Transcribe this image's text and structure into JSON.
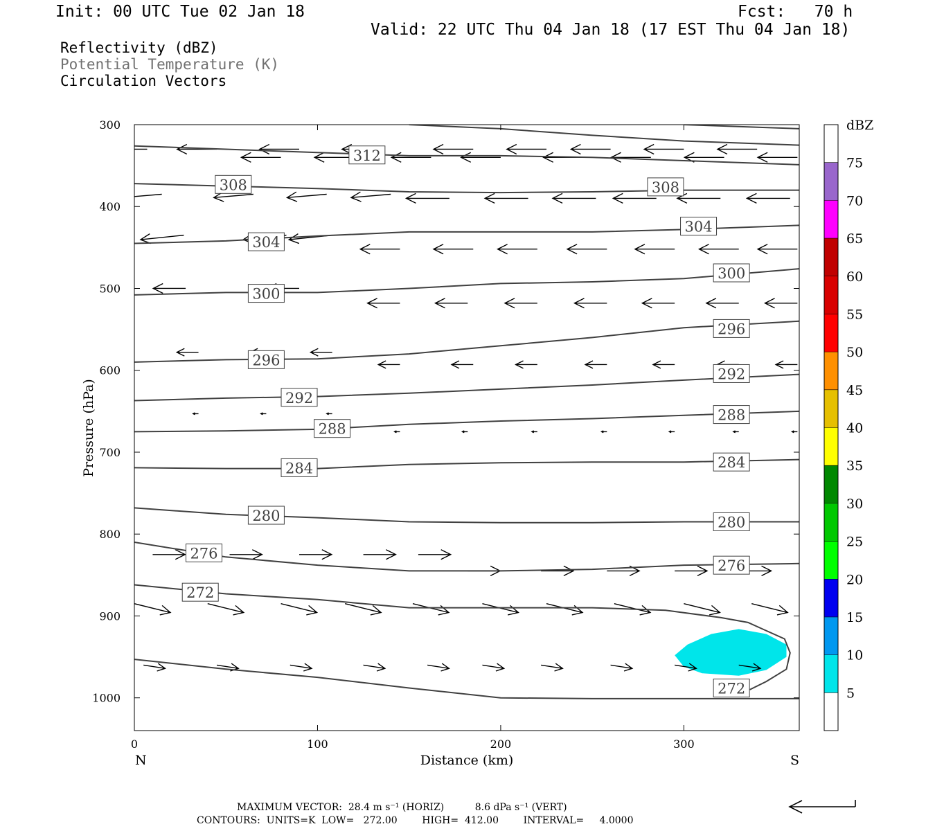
{
  "header": {
    "init": "Init: 00 UTC Tue 02 Jan 18",
    "fcst": "Fcst:   70 h",
    "valid": "Valid: 22 UTC Thu 04 Jan 18 (17 EST Thu 04 Jan 18)"
  },
  "legend": {
    "line1": "Reflectivity (dBZ)",
    "line2": "Potential Temperature (K)",
    "line3": "Circulation Vectors"
  },
  "footer": {
    "line1": "MAXIMUM VECTOR:  28.4 m s⁻¹ (HORIZ)          8.6 dPa s⁻¹ (VERT)",
    "line2": "CONTOURS:  UNITS=K  LOW=   272.00        HIGH=  412.00        INTERVAL=     4.0000"
  },
  "colors": {
    "contour": "#404040",
    "reflectivity_5": "#00e5ea"
  },
  "chart_data": {
    "type": "line",
    "xlabel": "Distance (km)",
    "ylabel": "Pressure (hPa)",
    "xlim": [
      0,
      363
    ],
    "ylim": [
      1040,
      300
    ],
    "x_ticks": [
      0,
      100,
      200,
      300
    ],
    "y_ticks": [
      300,
      400,
      500,
      600,
      700,
      800,
      900,
      1000
    ],
    "x_end_labels": {
      "left": "N",
      "right": "S"
    },
    "colorbar": {
      "title": "dBZ",
      "levels": [
        0,
        5,
        10,
        15,
        20,
        25,
        30,
        35,
        40,
        45,
        50,
        55,
        60,
        65,
        70,
        75,
        80
      ],
      "tick_labels": [
        "5",
        "10",
        "15",
        "20",
        "25",
        "30",
        "35",
        "40",
        "45",
        "50",
        "55",
        "60",
        "65",
        "70",
        "75"
      ],
      "colors": [
        "#ffffff",
        "#00e5ea",
        "#0098f0",
        "#0000f0",
        "#00ff00",
        "#00c800",
        "#008800",
        "#ffff00",
        "#e6c000",
        "#ff9000",
        "#ff0000",
        "#d80000",
        "#c00000",
        "#ff00ff",
        "#9966cc",
        "#ffffff"
      ]
    },
    "isentropes": [
      {
        "theta": 272,
        "points": [
          [
            0,
            953
          ],
          [
            50,
            965
          ],
          [
            100,
            975
          ],
          [
            150,
            988
          ],
          [
            200,
            1000
          ],
          [
            250,
            1001
          ],
          [
            300,
            1001
          ],
          [
            363,
            1001
          ]
        ]
      },
      {
        "theta": 272,
        "points": [
          [
            0,
            862
          ],
          [
            50,
            873
          ],
          [
            100,
            880
          ],
          [
            150,
            890
          ],
          [
            200,
            890
          ],
          [
            250,
            890
          ],
          [
            290,
            893
          ],
          [
            320,
            902
          ],
          [
            335,
            908
          ],
          [
            343,
            916
          ],
          [
            355,
            928
          ],
          [
            358,
            945
          ],
          [
            356,
            965
          ],
          [
            345,
            980
          ],
          [
            336,
            990
          ]
        ]
      },
      {
        "theta": 276,
        "points": [
          [
            0,
            810
          ],
          [
            50,
            828
          ],
          [
            100,
            838
          ],
          [
            150,
            845
          ],
          [
            200,
            845
          ],
          [
            250,
            843
          ],
          [
            300,
            838
          ],
          [
            363,
            836
          ]
        ]
      },
      {
        "theta": 280,
        "points": [
          [
            0,
            768
          ],
          [
            50,
            776
          ],
          [
            100,
            780
          ],
          [
            150,
            785
          ],
          [
            200,
            786
          ],
          [
            250,
            786
          ],
          [
            300,
            785
          ],
          [
            363,
            785
          ]
        ]
      },
      {
        "theta": 284,
        "points": [
          [
            0,
            719
          ],
          [
            50,
            720
          ],
          [
            100,
            720
          ],
          [
            150,
            715
          ],
          [
            200,
            713
          ],
          [
            250,
            712
          ],
          [
            300,
            712
          ],
          [
            363,
            709
          ]
        ]
      },
      {
        "theta": 288,
        "points": [
          [
            0,
            675
          ],
          [
            50,
            674
          ],
          [
            100,
            672
          ],
          [
            150,
            666
          ],
          [
            200,
            662
          ],
          [
            250,
            659
          ],
          [
            300,
            655
          ],
          [
            363,
            650
          ]
        ]
      },
      {
        "theta": 292,
        "points": [
          [
            0,
            637
          ],
          [
            50,
            634
          ],
          [
            100,
            632
          ],
          [
            150,
            628
          ],
          [
            200,
            623
          ],
          [
            250,
            618
          ],
          [
            300,
            612
          ],
          [
            363,
            605
          ]
        ]
      },
      {
        "theta": 296,
        "points": [
          [
            0,
            590
          ],
          [
            50,
            587
          ],
          [
            100,
            586
          ],
          [
            150,
            580
          ],
          [
            200,
            570
          ],
          [
            250,
            560
          ],
          [
            300,
            548
          ],
          [
            363,
            540
          ]
        ]
      },
      {
        "theta": 300,
        "points": [
          [
            0,
            508
          ],
          [
            50,
            505
          ],
          [
            100,
            505
          ],
          [
            150,
            500
          ],
          [
            200,
            494
          ],
          [
            250,
            492
          ],
          [
            300,
            488
          ],
          [
            363,
            476
          ]
        ]
      },
      {
        "theta": 304,
        "points": [
          [
            0,
            445
          ],
          [
            50,
            442
          ],
          [
            100,
            436
          ],
          [
            150,
            431
          ],
          [
            200,
            431
          ],
          [
            250,
            431
          ],
          [
            300,
            428
          ],
          [
            363,
            423
          ]
        ]
      },
      {
        "theta": 308,
        "points": [
          [
            0,
            372
          ],
          [
            50,
            375
          ],
          [
            100,
            378
          ],
          [
            150,
            382
          ],
          [
            200,
            383
          ],
          [
            250,
            382
          ],
          [
            300,
            380
          ],
          [
            363,
            380
          ]
        ]
      },
      {
        "theta": 312,
        "points": [
          [
            0,
            326
          ],
          [
            50,
            330
          ],
          [
            100,
            334
          ],
          [
            150,
            338
          ],
          [
            200,
            338
          ],
          [
            250,
            340
          ],
          [
            300,
            344
          ],
          [
            363,
            349
          ]
        ]
      },
      {
        "theta": 316,
        "points": [
          [
            150,
            300
          ],
          [
            200,
            305
          ],
          [
            250,
            313
          ],
          [
            300,
            320
          ],
          [
            363,
            325
          ]
        ]
      },
      {
        "theta": 320,
        "points": [
          [
            300,
            300
          ],
          [
            363,
            305
          ]
        ]
      }
    ],
    "contour_labels": [
      {
        "text": "312",
        "x": 127,
        "p": 337
      },
      {
        "text": "308",
        "x": 54,
        "p": 373
      },
      {
        "text": "308",
        "x": 290,
        "p": 376
      },
      {
        "text": "304",
        "x": 72,
        "p": 443
      },
      {
        "text": "304",
        "x": 308,
        "p": 424
      },
      {
        "text": "300",
        "x": 72,
        "p": 506
      },
      {
        "text": "300",
        "x": 326,
        "p": 481
      },
      {
        "text": "296",
        "x": 72,
        "p": 587
      },
      {
        "text": "296",
        "x": 326,
        "p": 549
      },
      {
        "text": "292",
        "x": 90,
        "p": 633
      },
      {
        "text": "292",
        "x": 326,
        "p": 604
      },
      {
        "text": "288",
        "x": 108,
        "p": 671
      },
      {
        "text": "288",
        "x": 326,
        "p": 654
      },
      {
        "text": "284",
        "x": 90,
        "p": 719
      },
      {
        "text": "284",
        "x": 326,
        "p": 712
      },
      {
        "text": "280",
        "x": 72,
        "p": 777
      },
      {
        "text": "280",
        "x": 326,
        "p": 785
      },
      {
        "text": "276",
        "x": 38,
        "p": 823
      },
      {
        "text": "276",
        "x": 326,
        "p": 838
      },
      {
        "text": "272",
        "x": 36,
        "p": 871
      },
      {
        "text": "272",
        "x": 326,
        "p": 988
      }
    ],
    "reflectivity_regions": [
      {
        "level": 5,
        "points": [
          [
            295,
            948
          ],
          [
            302,
            935
          ],
          [
            315,
            922
          ],
          [
            330,
            916
          ],
          [
            345,
            922
          ],
          [
            356,
            935
          ],
          [
            356,
            950
          ],
          [
            345,
            966
          ],
          [
            330,
            973
          ],
          [
            310,
            970
          ],
          [
            300,
            962
          ]
        ]
      }
    ],
    "vector_rows": [
      {
        "p": 330,
        "dx": -22,
        "dy": 0,
        "xs": [
          7,
          45,
          90,
          135,
          185,
          225,
          260,
          300,
          340
        ]
      },
      {
        "p": 340,
        "dx": -22,
        "dy": 0,
        "xs": [
          80,
          120,
          162,
          200,
          245,
          282,
          322,
          362
        ]
      },
      {
        "p": 385,
        "dx": -22,
        "dy": 3,
        "xs": [
          15,
          65,
          105,
          140
        ]
      },
      {
        "p": 390,
        "dx": -24,
        "dy": 0,
        "xs": [
          172,
          215,
          252,
          285,
          320,
          358
        ]
      },
      {
        "p": 435,
        "dx": -24,
        "dy": 4,
        "xs": [
          27,
          83,
          108
        ]
      },
      {
        "p": 452,
        "dx": -22,
        "dy": 0,
        "xs": [
          145,
          185,
          220,
          258,
          295,
          330,
          362
        ]
      },
      {
        "p": 500,
        "dx": -18,
        "dy": 0,
        "xs": [
          28,
          90
        ]
      },
      {
        "p": 518,
        "dx": -18,
        "dy": 0,
        "xs": [
          145,
          182,
          220,
          258,
          295,
          330,
          362
        ]
      },
      {
        "p": 578,
        "dx": -12,
        "dy": 0,
        "xs": [
          35,
          75,
          108
        ]
      },
      {
        "p": 593,
        "dx": -12,
        "dy": 0,
        "xs": [
          145,
          185,
          220,
          258,
          295,
          330,
          362
        ]
      },
      {
        "p": 653,
        "dx": -3,
        "dy": 0,
        "xs": [
          35,
          72,
          108
        ]
      },
      {
        "p": 675,
        "dx": -3,
        "dy": 0,
        "xs": [
          145,
          182,
          220,
          258,
          295,
          330,
          362
        ]
      },
      {
        "p": 825,
        "dx": 18,
        "dy": 0,
        "xs": [
          10,
          52,
          90,
          125,
          155
        ]
      },
      {
        "p": 845,
        "dx": 18,
        "dy": 0,
        "xs": [
          182,
          222,
          258,
          295,
          330
        ]
      },
      {
        "p": 885,
        "dx": 20,
        "dy": 8,
        "xs": [
          0,
          40,
          80,
          115,
          152,
          190,
          225,
          262,
          300,
          337
        ]
      },
      {
        "p": 960,
        "dx": 12,
        "dy": 3,
        "xs": [
          5,
          45,
          85,
          125,
          160,
          190,
          222,
          260,
          295,
          330
        ]
      }
    ]
  }
}
